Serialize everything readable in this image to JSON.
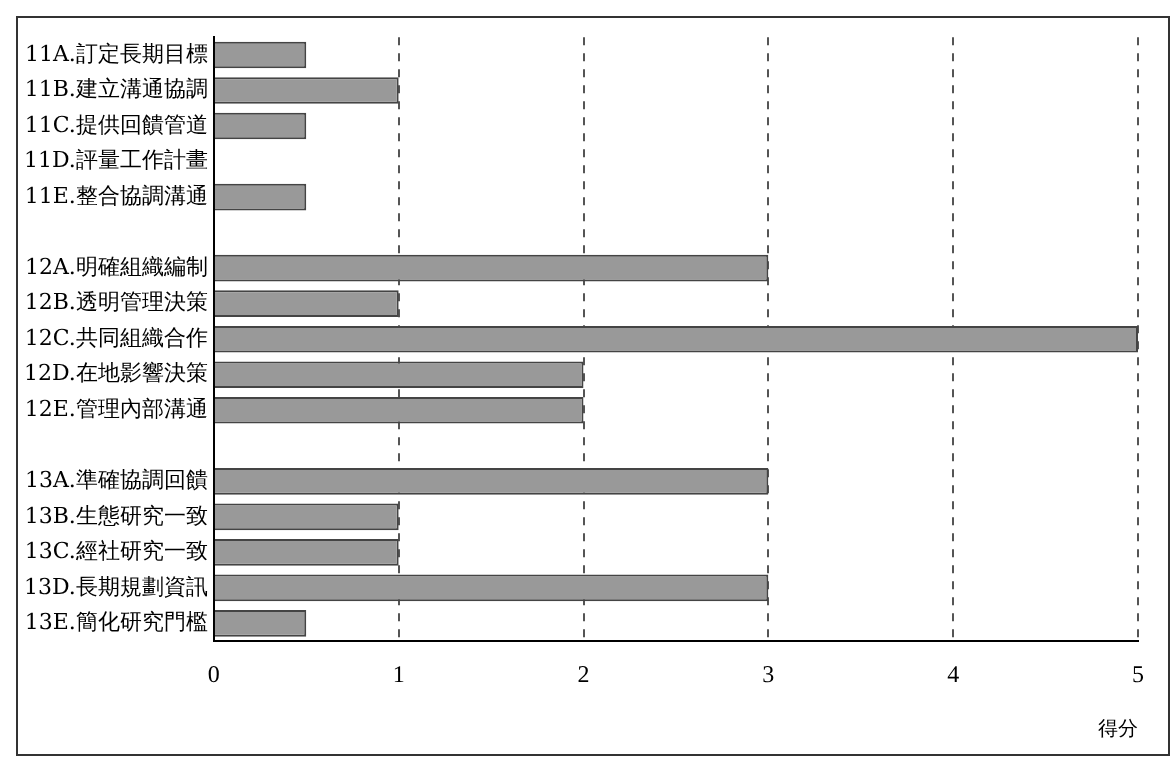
{
  "chart_data": {
    "type": "bar",
    "orientation": "horizontal",
    "xlabel": "得分",
    "categories": [
      "11A.訂定長期目標",
      "11B.建立溝通協調",
      "11C.提供回饋管道",
      "11D.評量工作計畫",
      "11E.整合協調溝通",
      null,
      "12A.明確組織編制",
      "12B.透明管理決策",
      "12C.共同組織合作",
      "12D.在地影響決策",
      "12E.管理內部溝通",
      null,
      "13A.準確協調回饋",
      "13B.生態研究一致",
      "13C.經社研究一致",
      "13D.長期規劃資訊",
      "13E.簡化研究門檻"
    ],
    "values": [
      0.5,
      1,
      0.5,
      0,
      0.5,
      null,
      3,
      1,
      5,
      2,
      2,
      null,
      3,
      1,
      1,
      3,
      0.5
    ],
    "color": "#999999",
    "xlim": [
      0,
      5
    ],
    "xticks": [
      0,
      1,
      2,
      3,
      4,
      5
    ],
    "grid": "x",
    "line_style": "dashed"
  }
}
